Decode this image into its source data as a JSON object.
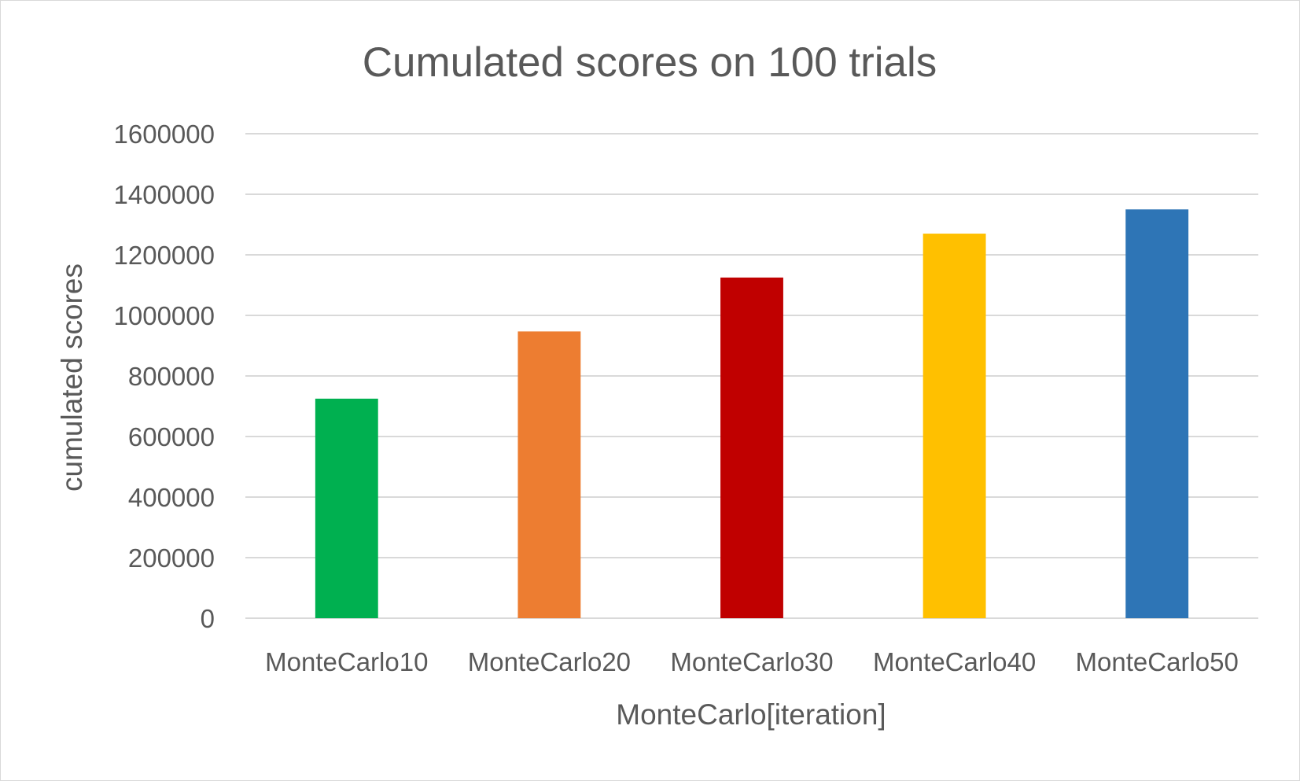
{
  "chart_data": {
    "type": "bar",
    "title": "Cumulated scores on 100 trials",
    "xlabel": "MonteCarlo[iteration]",
    "ylabel": "cumulated scores",
    "categories": [
      "MonteCarlo10",
      "MonteCarlo20",
      "MonteCarlo30",
      "MonteCarlo40",
      "MonteCarlo50"
    ],
    "values": [
      725000,
      947000,
      1125000,
      1270000,
      1350000
    ],
    "colors": [
      "#00b050",
      "#ed7d31",
      "#c00000",
      "#ffc000",
      "#2e75b6"
    ],
    "ylim": [
      0,
      1600000
    ],
    "yticks": [
      "0",
      "200000",
      "400000",
      "600000",
      "800000",
      "1000000",
      "1200000",
      "1400000",
      "1600000"
    ],
    "grid": true,
    "legend": "none"
  }
}
